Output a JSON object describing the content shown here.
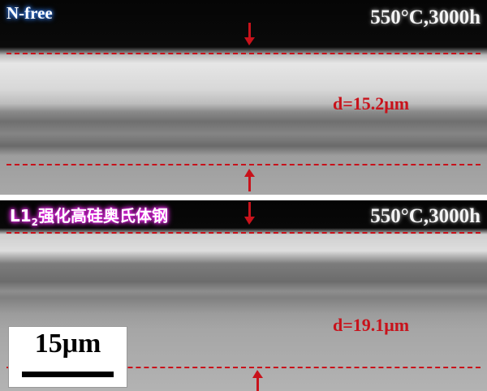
{
  "top_panel": {
    "label": "N-free",
    "condition": "550°C,3000h",
    "thickness": "d=15.2μm"
  },
  "bottom_panel": {
    "label_main": "L1",
    "label_sub": "2",
    "label_rest": "强化高硅奥氏体钢",
    "condition": "550°C,3000h",
    "thickness": "d=19.1μm",
    "scale_bar": "15μm"
  },
  "colors": {
    "marker": "#c8121b",
    "label1_glow": "#2a6ad0",
    "label2_glow": "#e020e0"
  }
}
